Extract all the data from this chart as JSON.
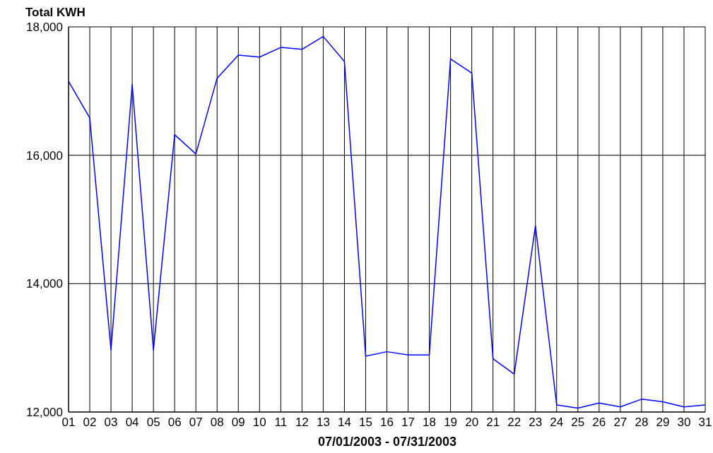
{
  "chart_data": {
    "type": "line",
    "title": "Total KWH",
    "xlabel": "07/01/2003 - 07/31/2003",
    "categories": [
      "01",
      "02",
      "03",
      "04",
      "05",
      "06",
      "07",
      "08",
      "09",
      "10",
      "11",
      "12",
      "13",
      "14",
      "15",
      "16",
      "17",
      "18",
      "19",
      "20",
      "21",
      "22",
      "23",
      "24",
      "25",
      "26",
      "27",
      "28",
      "29",
      "30",
      "31"
    ],
    "series": [
      {
        "color": "#0000ff",
        "values": [
          17150,
          16580,
          12970,
          17100,
          12970,
          16320,
          16020,
          17200,
          17560,
          17530,
          17680,
          17650,
          17850,
          17460,
          12870,
          12940,
          12890,
          12890,
          17500,
          17280,
          12830,
          12590,
          14900,
          12110,
          12060,
          12140,
          12080,
          12200,
          12160,
          12080,
          12110
        ]
      }
    ],
    "ylim": [
      12000,
      18000
    ],
    "yticks": [
      {
        "value": 12000,
        "label": "12,000"
      },
      {
        "value": 14000,
        "label": "14,000"
      },
      {
        "value": 16000,
        "label": "16,000"
      },
      {
        "value": 18000,
        "label": "18,000"
      }
    ],
    "grid": true,
    "legend": false,
    "marker": "none",
    "line_style": "solid"
  }
}
